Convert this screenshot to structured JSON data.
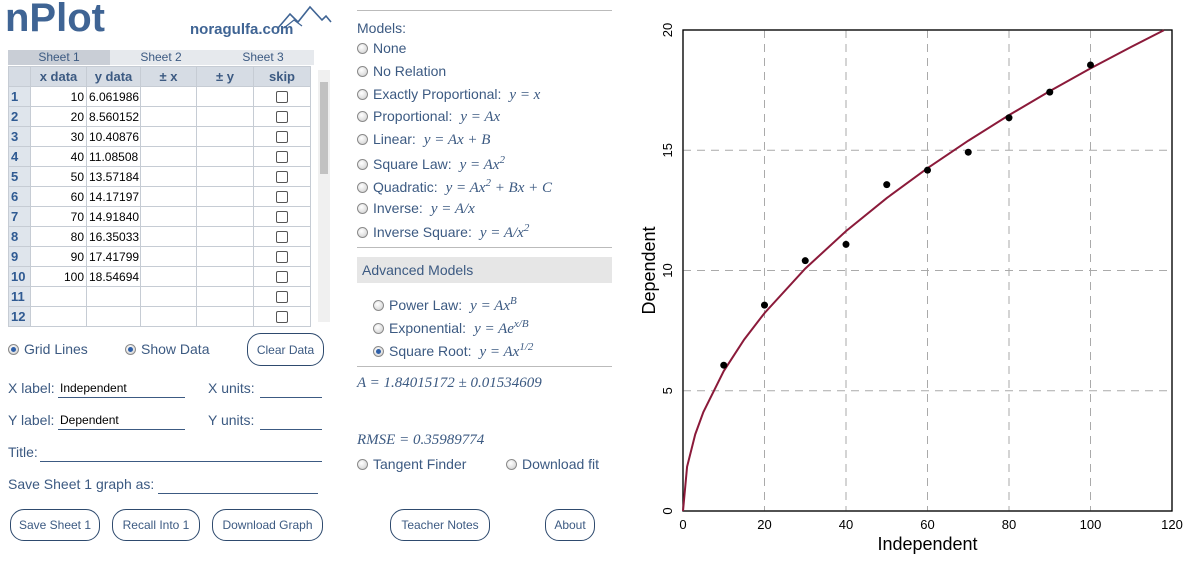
{
  "header": {
    "logo": "nPlot",
    "site": "noragulfa.com"
  },
  "sheets": [
    "Sheet 1",
    "Sheet 2",
    "Sheet 3"
  ],
  "table": {
    "columns": [
      "x data",
      "y data",
      "± x",
      "± y",
      "skip"
    ],
    "rows": [
      [
        "1",
        "10",
        "6.061986"
      ],
      [
        "2",
        "20",
        "8.560152"
      ],
      [
        "3",
        "30",
        "10.40876"
      ],
      [
        "4",
        "40",
        "11.08508"
      ],
      [
        "5",
        "50",
        "13.57184"
      ],
      [
        "6",
        "60",
        "14.17197"
      ],
      [
        "7",
        "70",
        "14.91840"
      ],
      [
        "8",
        "80",
        "16.35033"
      ],
      [
        "9",
        "90",
        "17.41799"
      ],
      [
        "10",
        "100",
        "18.54694"
      ],
      [
        "11"
      ],
      [
        "12"
      ]
    ]
  },
  "options": [
    {
      "label": "Grid Lines",
      "checked": true
    },
    {
      "label": "Show Data",
      "checked": true
    }
  ],
  "clear_button": "Clear Data",
  "fields": [
    {
      "label": "X label:",
      "value": "Independent"
    },
    {
      "label": "X units:"
    },
    {
      "label": "Y label:",
      "value": "Dependent"
    },
    {
      "label": "Y units:"
    },
    {
      "label": "Title:"
    },
    {
      "label": "Save Sheet 1 graph as:"
    }
  ],
  "buttons": [
    "Save Sheet 1",
    "Recall Into 1",
    "Download Graph",
    "Teacher Notes",
    "About"
  ],
  "models": {
    "title": "Models:",
    "items": [
      {
        "label": "None"
      },
      {
        "label": "No Relation"
      },
      {
        "label": "Exactly Proportional:",
        "formula": [
          "y = x"
        ]
      },
      {
        "label": "Proportional:",
        "formula": [
          "y = Ax"
        ]
      },
      {
        "label": "Linear:",
        "formula": [
          "y = Ax + B"
        ]
      },
      {
        "label": "Square Law:",
        "formula": [
          "y = Ax",
          "2"
        ]
      },
      {
        "label": "Quadratic:",
        "formula": [
          "y = Ax",
          "2",
          " + Bx + C"
        ]
      },
      {
        "label": "Inverse:",
        "formula": [
          "y = A/x"
        ]
      },
      {
        "label": "Inverse Square:",
        "formula": [
          "y = A/x",
          "2"
        ]
      }
    ]
  },
  "advanced": {
    "title": "Advanced Models",
    "items": [
      {
        "label": "Power Law:",
        "formula": [
          "y = Ax",
          "B"
        ]
      },
      {
        "label": "Exponential:",
        "formula": [
          "y = Ae",
          "x/B"
        ]
      },
      {
        "label": "Square Root:",
        "formula": [
          "y = Ax",
          "1/2"
        ],
        "checked": true
      }
    ]
  },
  "results": {
    "fit": "A = 1.84015172 ± 0.01534609",
    "rmse": "RMSE = 0.35989774"
  },
  "tools": [
    "Tangent Finder",
    "Download fit"
  ],
  "chart_data": {
    "type": "scatter",
    "xlabel": "Independent",
    "ylabel": "Dependent",
    "xlim": [
      0,
      120
    ],
    "ylim": [
      0,
      20
    ],
    "xticks": [
      0,
      20,
      40,
      60,
      80,
      100,
      120
    ],
    "yticks": [
      0,
      5,
      10,
      15,
      20
    ],
    "grid": true,
    "series": [
      {
        "type": "scatter",
        "color": "#000000",
        "x": [
          10,
          20,
          30,
          40,
          50,
          60,
          70,
          80,
          90,
          100
        ],
        "values": [
          6.061986,
          8.560152,
          10.40876,
          11.08508,
          13.57184,
          14.17197,
          14.9184,
          16.35033,
          17.41799,
          18.54694
        ]
      },
      {
        "type": "line",
        "color": "#8b1a3a",
        "x": [
          0,
          1,
          3,
          5,
          10,
          15,
          20,
          30,
          40,
          50,
          60,
          70,
          80,
          90,
          100,
          110,
          118
        ],
        "values": [
          0,
          1.84,
          3.187,
          4.115,
          5.819,
          7.127,
          8.229,
          10.079,
          11.638,
          13.012,
          14.254,
          15.396,
          16.459,
          17.457,
          18.402,
          19.3,
          19.989
        ]
      }
    ]
  }
}
